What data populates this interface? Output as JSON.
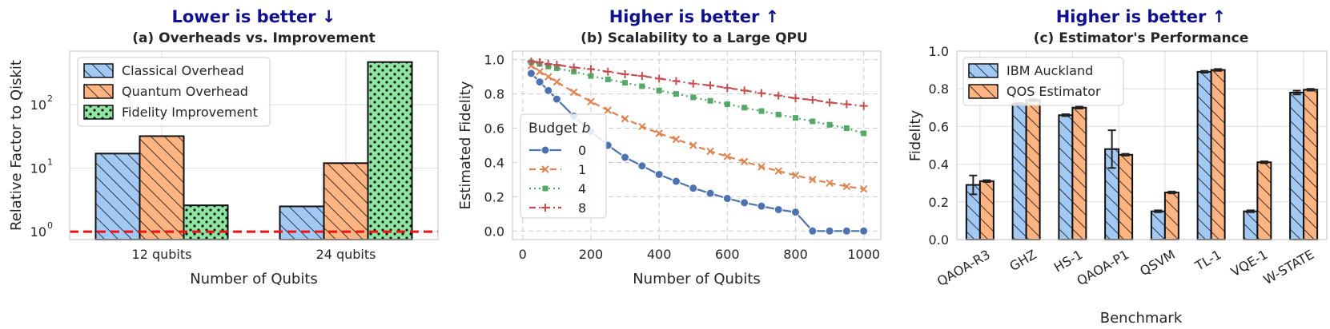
{
  "chart_data": [
    {
      "type": "bar",
      "headline": "Lower is better ↓",
      "title": "(a) Overheads vs. Improvement",
      "xlabel": "Number of Qubits",
      "ylabel": "Relative Factor to Qiskit",
      "yscale": "log",
      "ylim": [
        0.75,
        700
      ],
      "yticks": [
        {
          "value": 1,
          "base": "10",
          "exp": "0"
        },
        {
          "value": 10,
          "base": "10",
          "exp": "1"
        },
        {
          "value": 100,
          "base": "10",
          "exp": "2"
        }
      ],
      "categories": [
        "12 qubits",
        "24 qubits"
      ],
      "series": [
        {
          "name": "Classical Overhead",
          "values": [
            17,
            2.5
          ],
          "color": "#a1c9f4",
          "hatch": "diag"
        },
        {
          "name": "Quantum Overhead",
          "values": [
            32,
            12
          ],
          "color": "#ffb482",
          "hatch": "diag"
        },
        {
          "name": "Fidelity Improvement",
          "values": [
            2.6,
            470
          ],
          "color": "#8de5a1",
          "hatch": "dots"
        }
      ],
      "reference_line": {
        "value": 1,
        "color": "#ee1111",
        "style": "dashed"
      },
      "legend_position": "top-left",
      "grid": true
    },
    {
      "type": "line",
      "headline": "Higher is better ↑",
      "title": "(b) Scalability to a Large QPU",
      "xlabel": "Number of Qubits",
      "ylabel": "Estimated Fidelity",
      "xlim": [
        -30,
        1050
      ],
      "ylim": [
        -0.05,
        1.05
      ],
      "xticks": [
        0,
        200,
        400,
        600,
        800,
        1000
      ],
      "yticks": [
        "0.0",
        "0.2",
        "0.4",
        "0.6",
        "0.8",
        "1.0"
      ],
      "legend_title": "Budget b",
      "legend_position": "center-left",
      "grid": true,
      "series": [
        {
          "name": "0",
          "color": "#4c72b0",
          "marker": "circle",
          "dash": "solid",
          "x": [
            25,
            50,
            75,
            100,
            150,
            200,
            250,
            300,
            350,
            400,
            450,
            500,
            550,
            600,
            650,
            700,
            750,
            800,
            850,
            900,
            950,
            1000
          ],
          "y": [
            0.92,
            0.87,
            0.82,
            0.77,
            0.67,
            0.58,
            0.5,
            0.43,
            0.38,
            0.33,
            0.29,
            0.25,
            0.22,
            0.19,
            0.165,
            0.145,
            0.125,
            0.11,
            0.0,
            0.0,
            0.0,
            0.0
          ]
        },
        {
          "name": "1",
          "color": "#dd8452",
          "marker": "x",
          "dash": "dashed",
          "x": [
            25,
            50,
            75,
            100,
            150,
            200,
            250,
            300,
            350,
            400,
            450,
            500,
            550,
            600,
            650,
            700,
            750,
            800,
            850,
            900,
            950,
            1000
          ],
          "y": [
            0.965,
            0.93,
            0.9,
            0.87,
            0.81,
            0.755,
            0.705,
            0.655,
            0.61,
            0.57,
            0.535,
            0.5,
            0.465,
            0.435,
            0.405,
            0.375,
            0.35,
            0.325,
            0.3,
            0.28,
            0.26,
            0.245
          ]
        },
        {
          "name": "4",
          "color": "#55a868",
          "marker": "square",
          "dash": "dotted",
          "x": [
            25,
            50,
            75,
            100,
            150,
            200,
            250,
            300,
            350,
            400,
            450,
            500,
            550,
            600,
            650,
            700,
            750,
            800,
            850,
            900,
            950,
            1000
          ],
          "y": [
            0.985,
            0.975,
            0.96,
            0.95,
            0.93,
            0.905,
            0.885,
            0.865,
            0.845,
            0.82,
            0.8,
            0.78,
            0.76,
            0.74,
            0.72,
            0.7,
            0.68,
            0.66,
            0.64,
            0.62,
            0.6,
            0.57
          ]
        },
        {
          "name": "8",
          "color": "#c44e52",
          "marker": "plus",
          "dash": "dashdot",
          "x": [
            25,
            50,
            75,
            100,
            150,
            200,
            250,
            300,
            350,
            400,
            450,
            500,
            550,
            600,
            650,
            700,
            750,
            800,
            850,
            900,
            950,
            1000
          ],
          "y": [
            0.99,
            0.985,
            0.975,
            0.97,
            0.955,
            0.945,
            0.93,
            0.915,
            0.905,
            0.89,
            0.875,
            0.86,
            0.85,
            0.835,
            0.82,
            0.805,
            0.79,
            0.775,
            0.765,
            0.75,
            0.74,
            0.73
          ]
        }
      ]
    },
    {
      "type": "bar",
      "headline": "Higher is better ↑",
      "title": "(c) Estimator's Performance",
      "xlabel": "Benchmark",
      "ylabel": "Fidelity",
      "ylim": [
        0,
        1.0
      ],
      "yticks": [
        "0.0",
        "0.2",
        "0.4",
        "0.6",
        "0.8",
        "1.0"
      ],
      "categories": [
        "QAOA-R3",
        "GHZ",
        "HS-1",
        "QAOA-P1",
        "QSVM",
        "TL-1",
        "VQE-1",
        "W-STATE"
      ],
      "series": [
        {
          "name": "IBM Auckland",
          "values": [
            0.29,
            0.72,
            0.66,
            0.48,
            0.15,
            0.89,
            0.15,
            0.78
          ],
          "errors": [
            0.05,
            0.005,
            0.005,
            0.1,
            0.005,
            0.005,
            0.005,
            0.01
          ],
          "color": "#a1c9f4",
          "hatch": "diag"
        },
        {
          "name": "QOS Estimator",
          "values": [
            0.31,
            0.74,
            0.7,
            0.45,
            0.25,
            0.9,
            0.41,
            0.795
          ],
          "errors": [
            0.005,
            0.005,
            0.005,
            0.005,
            0.005,
            0.005,
            0.005,
            0.005
          ],
          "color": "#ffb482",
          "hatch": "diag"
        }
      ],
      "legend_position": "top-left",
      "grid": true
    }
  ]
}
